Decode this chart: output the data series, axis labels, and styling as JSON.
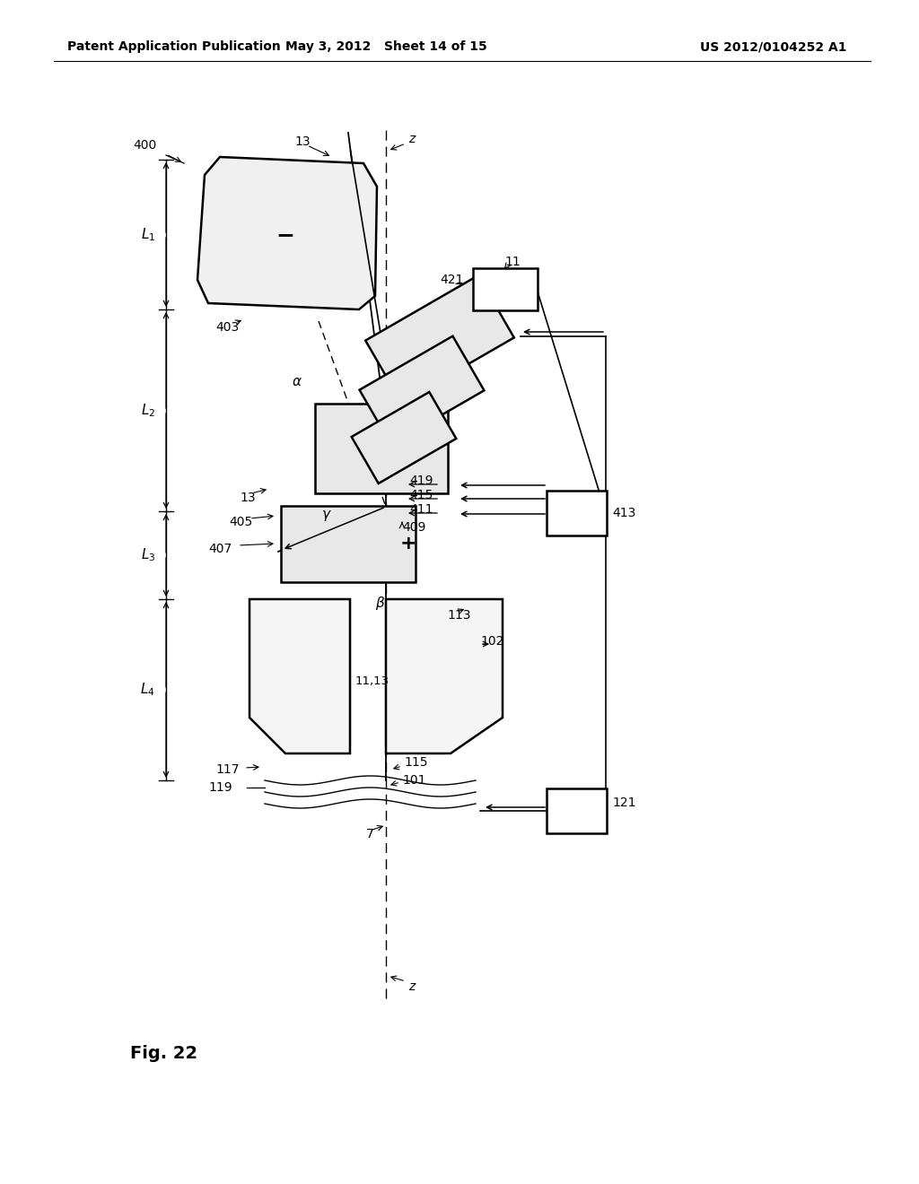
{
  "bg_color": "#ffffff",
  "line_color": "#000000",
  "header_left": "Patent Application Publication",
  "header_mid": "May 3, 2012   Sheet 14 of 15",
  "header_right": "US 2012/0104252 A1",
  "fig_label": "Fig. 22"
}
